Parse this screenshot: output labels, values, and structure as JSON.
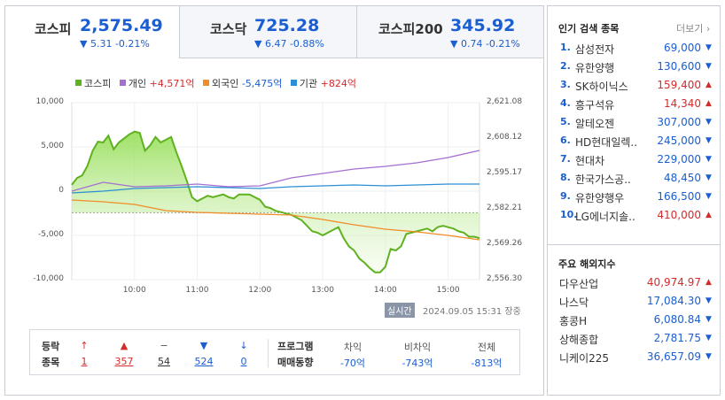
{
  "tabs": [
    {
      "name": "코스피",
      "value": "2,575.49",
      "change": "▼ 5.31 -0.21%"
    },
    {
      "name": "코스닥",
      "value": "725.28",
      "change": "▼ 6.47 -0.88%"
    },
    {
      "name": "코스피200",
      "value": "345.92",
      "change": "▼ 0.74 -0.21%"
    }
  ],
  "legend": {
    "kospi": "코스피",
    "individual": "개인",
    "individual_val": "+4,571억",
    "foreign": "외국인",
    "foreign_val": "-5,475억",
    "institution": "기관",
    "institution_val": "+824억"
  },
  "colors": {
    "kospi": "#5fb21f",
    "individual": "#a46fd0",
    "foreign": "#f08c29",
    "institution": "#2b8ed6",
    "up": "#d42b2b",
    "down": "#1a5ed1"
  },
  "chart_data": {
    "type": "line",
    "title": "",
    "y_left_ticks": [
      "10,000",
      "5,000",
      "0",
      "-5,000",
      "-10,000"
    ],
    "y_right_ticks": [
      "2,621.08",
      "2,608.12",
      "2,595.17",
      "2,582.21",
      "2,569.26",
      "2,556.30"
    ],
    "x_ticks": [
      "10:00",
      "11:00",
      "12:00",
      "13:00",
      "14:00",
      "15:00"
    ],
    "ylim_left": [
      -10000,
      10000
    ],
    "ylim_right": [
      2556.3,
      2621.08
    ],
    "x_range": [
      "09:00",
      "15:30"
    ],
    "reference_line": 2580.8,
    "series": [
      {
        "name": "코스피",
        "axis": "right",
        "x": [
          "09:00",
          "09:05",
          "09:10",
          "09:15",
          "09:20",
          "09:25",
          "09:30",
          "09:35",
          "09:40",
          "09:45",
          "09:50",
          "09:55",
          "10:00",
          "10:05",
          "10:10",
          "10:15",
          "10:20",
          "10:25",
          "10:30",
          "10:35",
          "10:40",
          "10:45",
          "10:50",
          "10:55",
          "11:00",
          "11:05",
          "11:10",
          "11:15",
          "11:20",
          "11:25",
          "11:30",
          "11:35",
          "11:40",
          "11:45",
          "11:50",
          "11:55",
          "12:00",
          "12:05",
          "12:10",
          "12:15",
          "12:20",
          "12:25",
          "12:30",
          "12:35",
          "12:40",
          "12:45",
          "12:50",
          "12:55",
          "13:00",
          "13:05",
          "13:10",
          "13:15",
          "13:20",
          "13:25",
          "13:30",
          "13:35",
          "13:40",
          "13:45",
          "13:50",
          "13:55",
          "14:00",
          "14:05",
          "14:10",
          "14:15",
          "14:20",
          "14:25",
          "14:30",
          "14:35",
          "14:40",
          "14:45",
          "14:50",
          "14:55",
          "15:00",
          "15:05",
          "15:10",
          "15:15",
          "15:20",
          "15:25",
          "15:30"
        ],
        "values": [
          2591.0,
          2593.5,
          2594.5,
          2598.0,
          2603.5,
          2606.8,
          2606.5,
          2609.0,
          2604.0,
          2606.5,
          2608.0,
          2609.5,
          2610.5,
          2610.0,
          2603.5,
          2605.5,
          2608.5,
          2606.5,
          2607.5,
          2608.5,
          2603.0,
          2598.0,
          2592.5,
          2586.5,
          2585.0,
          2586.0,
          2587.0,
          2586.5,
          2587.0,
          2587.5,
          2586.5,
          2586.0,
          2587.5,
          2587.5,
          2587.5,
          2586.5,
          2585.5,
          2583.0,
          2582.5,
          2581.5,
          2581.0,
          2580.5,
          2580.0,
          2579.0,
          2578.0,
          2576.0,
          2574.0,
          2573.5,
          2572.5,
          2573.5,
          2574.5,
          2575.5,
          2571.5,
          2568.5,
          2567.0,
          2564.0,
          2562.5,
          2560.5,
          2559.0,
          2559.0,
          2561.0,
          2567.5,
          2567.0,
          2568.5,
          2573.0,
          2573.5,
          2574.0,
          2574.5,
          2575.0,
          2574.0,
          2575.5,
          2576.0,
          2575.5,
          2575.0,
          2574.0,
          2573.5,
          2572.0,
          2572.0,
          2571.5
        ]
      },
      {
        "name": "개인",
        "axis": "left",
        "x": [
          "09:00",
          "09:30",
          "10:00",
          "10:30",
          "11:00",
          "11:30",
          "12:00",
          "12:30",
          "13:00",
          "13:30",
          "14:00",
          "14:30",
          "15:00",
          "15:30"
        ],
        "values": [
          0,
          1000,
          500,
          600,
          800,
          500,
          600,
          1500,
          2000,
          2500,
          2800,
          3200,
          3800,
          4600
        ]
      },
      {
        "name": "외국인",
        "axis": "left",
        "x": [
          "09:00",
          "09:30",
          "10:00",
          "10:30",
          "11:00",
          "11:30",
          "12:00",
          "12:30",
          "13:00",
          "13:30",
          "14:00",
          "14:30",
          "15:00",
          "15:30"
        ],
        "values": [
          -1000,
          -1200,
          -1500,
          -2200,
          -2400,
          -2500,
          -2600,
          -2700,
          -3200,
          -3800,
          -4300,
          -4600,
          -5000,
          -5500
        ]
      },
      {
        "name": "기관",
        "axis": "left",
        "x": [
          "09:00",
          "09:30",
          "10:00",
          "10:30",
          "11:00",
          "11:30",
          "12:00",
          "12:30",
          "13:00",
          "13:30",
          "14:00",
          "14:30",
          "15:00",
          "15:30"
        ],
        "values": [
          -200,
          0,
          300,
          400,
          500,
          400,
          300,
          500,
          600,
          700,
          600,
          700,
          800,
          800
        ]
      }
    ]
  },
  "status": {
    "realtime": "실시간",
    "timestamp": "2024.09.05 15:31 장중"
  },
  "updown": {
    "label1": "등락",
    "label2": "종목",
    "headers": [
      "↑",
      "▲",
      "−",
      "▼",
      "↓"
    ],
    "values": [
      "1",
      "357",
      "54",
      "524",
      "0"
    ]
  },
  "program": {
    "label1": "프로그램",
    "label2": "매매동향",
    "cols": [
      {
        "caption": "차익",
        "value": "-70억"
      },
      {
        "caption": "비차익",
        "value": "-743억"
      },
      {
        "caption": "전체",
        "value": "-813억"
      }
    ]
  },
  "popular": {
    "title": "인기 검색 종목",
    "more": "더보기",
    "items": [
      {
        "no": "1.",
        "name": "삼성전자",
        "price": "69,000",
        "dir": "down"
      },
      {
        "no": "2.",
        "name": "유한양행",
        "price": "130,600",
        "dir": "down"
      },
      {
        "no": "3.",
        "name": "SK하이닉스",
        "price": "159,400",
        "dir": "up"
      },
      {
        "no": "4.",
        "name": "흥구석유",
        "price": "14,340",
        "dir": "up"
      },
      {
        "no": "5.",
        "name": "알테오젠",
        "price": "307,000",
        "dir": "down"
      },
      {
        "no": "6.",
        "name": "HD현대일렉..",
        "price": "245,000",
        "dir": "down"
      },
      {
        "no": "7.",
        "name": "현대차",
        "price": "229,000",
        "dir": "down"
      },
      {
        "no": "8.",
        "name": "한국가스공..",
        "price": "48,450",
        "dir": "down"
      },
      {
        "no": "9.",
        "name": "유한양행우",
        "price": "166,500",
        "dir": "down"
      },
      {
        "no": "10.",
        "name": "LG에너지솔..",
        "price": "410,000",
        "dir": "up"
      }
    ]
  },
  "overseas": {
    "title": "주요 해외지수",
    "items": [
      {
        "name": "다우산업",
        "price": "40,974.97",
        "dir": "up"
      },
      {
        "name": "나스닥",
        "price": "17,084.30",
        "dir": "down"
      },
      {
        "name": "홍콩H",
        "price": "6,080.84",
        "dir": "down"
      },
      {
        "name": "상해종합",
        "price": "2,781.75",
        "dir": "down"
      },
      {
        "name": "니케이225",
        "price": "36,657.09",
        "dir": "down"
      }
    ]
  }
}
